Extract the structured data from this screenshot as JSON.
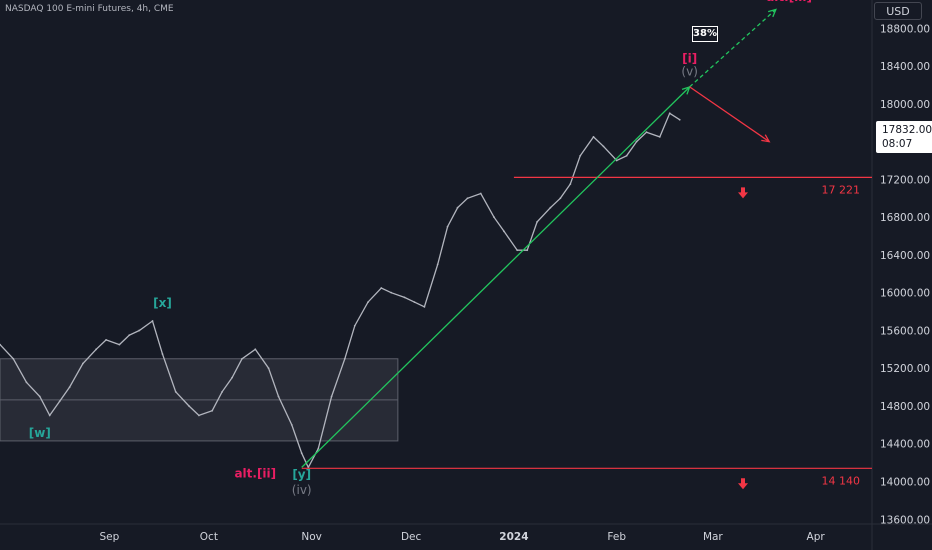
{
  "header": {
    "symbol_title": "NASDAQ 100 E-mini Futures, 4h, CME"
  },
  "price_scale": {
    "currency": "USD",
    "last_price": "17832.00",
    "countdown": "08:07"
  },
  "colors": {
    "background": "#161a25",
    "wave_green": "#26a69a",
    "alt_pink": "#e91e63",
    "projection_green": "#22c55e",
    "red": "#f23645",
    "candle": "#b2b5be"
  },
  "chart_data": {
    "type": "line",
    "title": "NASDAQ 100 E-mini Futures, 4h, CME",
    "y_axis_position": "right",
    "ylim": [
      13550,
      19100
    ],
    "xlim": [
      "2023-07-30",
      "2024-04-18"
    ],
    "yticks": [
      13600,
      14000,
      14400,
      14800,
      15200,
      15600,
      16000,
      16400,
      16800,
      17200,
      17600,
      18000,
      18400,
      18800
    ],
    "ytick_labels": [
      "13600.00",
      "14000.00",
      "14400.00",
      "14800.00",
      "15200.00",
      "15600.00",
      "16000.00",
      "16400.00",
      "16800.00",
      "17200.00",
      "17600.00",
      "18000.00",
      "18400.00",
      "18800.00"
    ],
    "xticks": [
      "2023-09-01",
      "2023-10-01",
      "2023-11-01",
      "2023-12-01",
      "2024-01-01",
      "2024-02-01",
      "2024-03-01",
      "2024-04-01"
    ],
    "xtick_labels": [
      "Sep",
      "Oct",
      "Nov",
      "Dec",
      "2024",
      "Feb",
      "Mar",
      "Apr"
    ],
    "series": [
      {
        "x": [
          "2023-07-30",
          "2023-08-03",
          "2023-08-07",
          "2023-08-11",
          "2023-08-14",
          "2023-08-17",
          "2023-08-20",
          "2023-08-24",
          "2023-08-28",
          "2023-08-31",
          "2023-09-04",
          "2023-09-07",
          "2023-09-10",
          "2023-09-14",
          "2023-09-17",
          "2023-09-21",
          "2023-09-25",
          "2023-09-28",
          "2023-10-02",
          "2023-10-05",
          "2023-10-08",
          "2023-10-11",
          "2023-10-15",
          "2023-10-19",
          "2023-10-22",
          "2023-10-26",
          "2023-10-29",
          "2023-10-31",
          "2023-11-03",
          "2023-11-07",
          "2023-11-11",
          "2023-11-14",
          "2023-11-18",
          "2023-11-22",
          "2023-11-25",
          "2023-11-29",
          "2023-12-02",
          "2023-12-05",
          "2023-12-09",
          "2023-12-12",
          "2023-12-15",
          "2023-12-18",
          "2023-12-22",
          "2023-12-26",
          "2023-12-29",
          "2024-01-02",
          "2024-01-05",
          "2024-01-08",
          "2024-01-12",
          "2024-01-15",
          "2024-01-18",
          "2024-01-21",
          "2024-01-25",
          "2024-01-28",
          "2024-02-01",
          "2024-02-04",
          "2024-02-07",
          "2024-02-10",
          "2024-02-14",
          "2024-02-17",
          "2024-02-20"
        ],
        "y": [
          15450,
          15300,
          15050,
          14900,
          14700,
          14850,
          15000,
          15250,
          15400,
          15500,
          15450,
          15550,
          15600,
          15700,
          15350,
          14950,
          14800,
          14700,
          14750,
          14950,
          15100,
          15300,
          15400,
          15200,
          14900,
          14600,
          14300,
          14150,
          14350,
          14900,
          15300,
          15650,
          15900,
          16050,
          16000,
          15950,
          15900,
          15850,
          16300,
          16700,
          16900,
          17000,
          17050,
          16800,
          16650,
          16450,
          16450,
          16750,
          16900,
          17000,
          17150,
          17450,
          17650,
          17550,
          17400,
          17450,
          17600,
          17700,
          17650,
          17900,
          17832
        ]
      }
    ],
    "range_box": {
      "y_low": 14430,
      "y_high": 15300,
      "y_mid": 14865,
      "x_start": "2023-07-30",
      "x_end": "2023-11-27"
    },
    "levels": [
      {
        "label": "17 221",
        "value": 17221,
        "x_start": "2024-01-01"
      },
      {
        "label": "14 140",
        "value": 14140,
        "x_start": "2023-10-29"
      }
    ],
    "trend_lines": [
      {
        "name": "impulse",
        "from": [
          "2023-10-29",
          14150
        ],
        "to": [
          "2024-02-23",
          18180
        ]
      },
      {
        "name": "projection",
        "from": [
          "2024-02-23",
          18180
        ],
        "to": [
          "2024-03-20",
          19000
        ],
        "dashed": true
      },
      {
        "name": "correction",
        "from": [
          "2024-02-23",
          18180
        ],
        "to": [
          "2024-03-18",
          17600
        ]
      }
    ],
    "wave_labels": [
      {
        "text": "[w]",
        "x": "2023-08-11",
        "y": 14470,
        "color": "green"
      },
      {
        "text": "[x]",
        "x": "2023-09-17",
        "y": 15850,
        "color": "green"
      },
      {
        "text": "[y]",
        "x": "2023-10-29",
        "y": 14030,
        "color": "green"
      },
      {
        "text": "(iv)",
        "x": "2023-10-29",
        "y": 13870,
        "color": "gray"
      },
      {
        "text": "alt.[ii]",
        "x": "2023-10-15",
        "y": 14040,
        "color": "pink"
      },
      {
        "text": "[i]",
        "x": "2024-02-23",
        "y": 18440,
        "color": "pink"
      },
      {
        "text": "(v)",
        "x": "2024-02-23",
        "y": 18300,
        "color": "gray"
      },
      {
        "text": "alt.[iii]",
        "x": "2024-03-24",
        "y": 19090,
        "color": "pink"
      }
    ],
    "annotations": [
      {
        "text": "38%",
        "x": "2024-02-29",
        "y": 18890
      }
    ]
  }
}
